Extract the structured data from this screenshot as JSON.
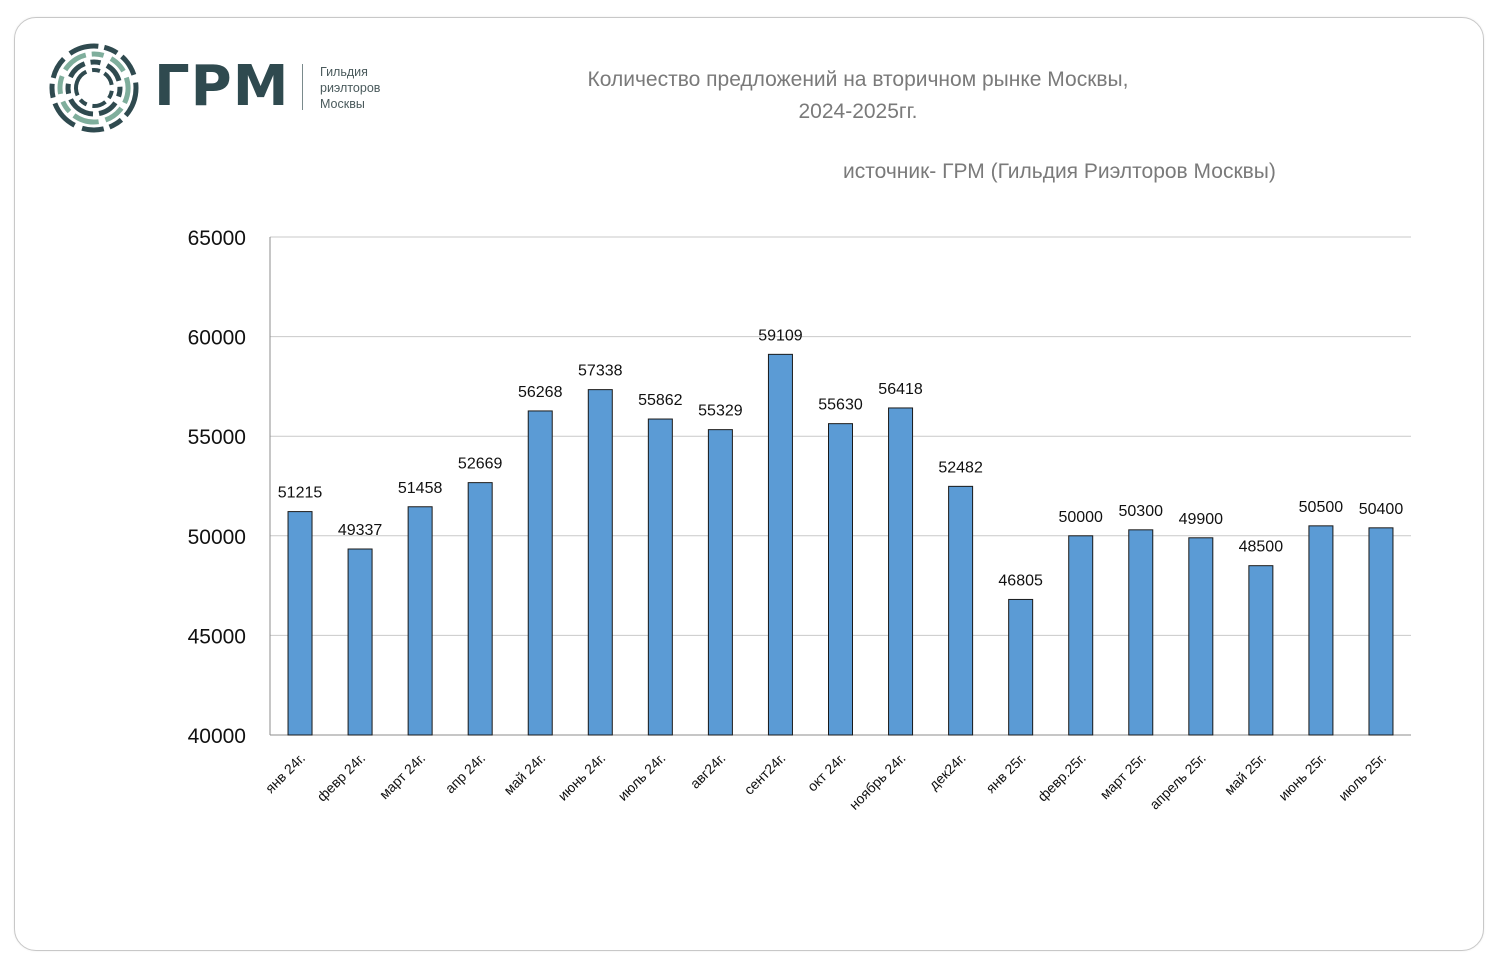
{
  "logo": {
    "text": "ГРМ",
    "sub_lines": [
      "Гильдия",
      "риэлторов",
      "Москвы"
    ],
    "icon": "ring-logo-icon",
    "colors": {
      "dark": "#2f4a4f",
      "accent": "#7fae9c"
    }
  },
  "title_lines": [
    "Количество  предложений на вторичном рынке Москвы,",
    "2024-2025гг."
  ],
  "source": "источник- ГРМ (Гильдия Риэлторов Москвы)",
  "chart_data": {
    "type": "bar",
    "title": "Количество  предложений на вторичном рынке Москвы, 2024-2025гг.",
    "categories": [
      "янв 24г.",
      "февр 24г.",
      "март 24г.",
      "апр 24г.",
      "май 24г.",
      "июнь 24г.",
      "июль 24г.",
      "авг24г.",
      "сент24г.",
      "окт 24г.",
      "ноябрь 24г.",
      "дек24г.",
      "янв 25г.",
      "февр.25г.",
      "март 25г.",
      "апрель 25г.",
      "май 25г.",
      "июнь 25г.",
      "июль 25г."
    ],
    "values": [
      51215,
      49337,
      51458,
      52669,
      56268,
      57338,
      55862,
      55329,
      59109,
      55630,
      56418,
      52482,
      46805,
      50000,
      50300,
      49900,
      48500,
      50500,
      50400
    ],
    "data_labels": [
      "51215",
      "49337",
      "51458",
      "52669",
      "56268",
      "57338",
      "55862",
      "55329",
      "59109",
      "55630",
      "56418",
      "52482",
      "46805",
      "50000",
      "50300",
      "49900",
      "48500",
      "50500",
      "50400"
    ],
    "ylim": [
      40000,
      65000
    ],
    "yticks": [
      40000,
      45000,
      50000,
      55000,
      60000,
      65000
    ],
    "ytick_labels": [
      "40000",
      "45000",
      "50000",
      "55000",
      "60000",
      "65000"
    ],
    "xlabel": "",
    "ylabel": "",
    "grid": true,
    "legend": "none",
    "bar_color": "#5b9bd5",
    "bar_edge_color": "#1a1a1a"
  }
}
